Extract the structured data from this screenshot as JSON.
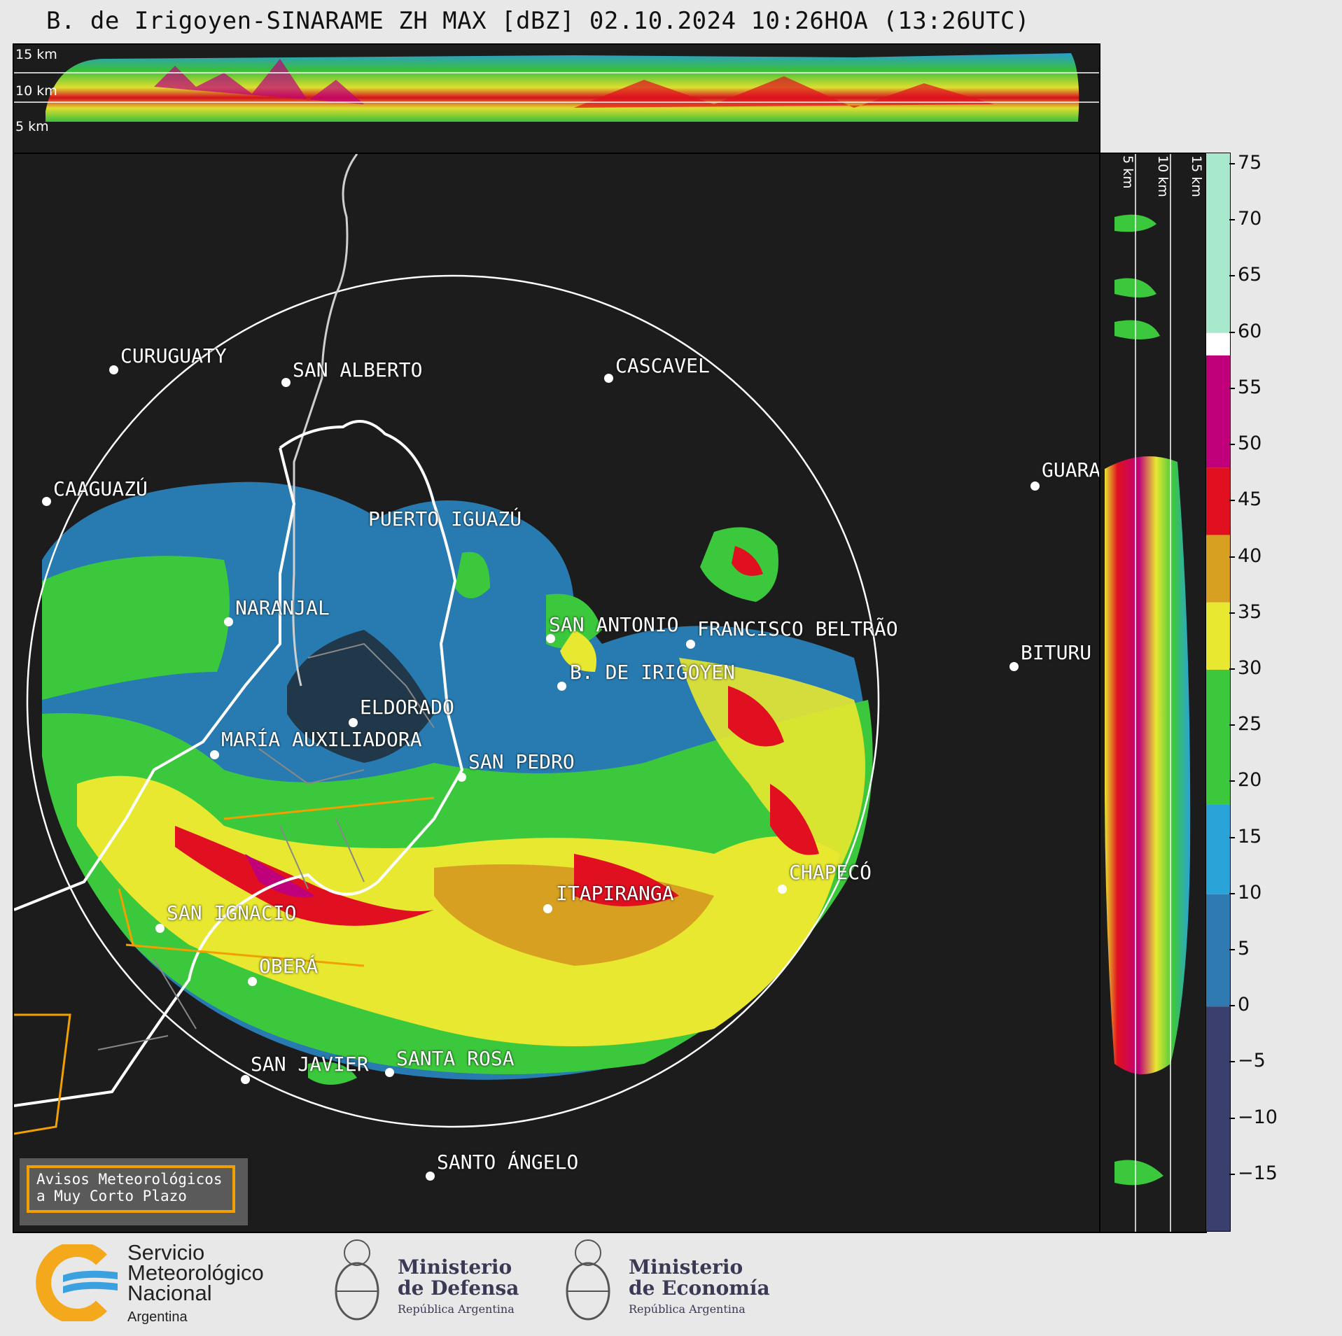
{
  "title": "B. de Irigoyen-SINARAME ZH MAX [dBZ] 02.10.2024 10:26HOA (13:26UTC)",
  "top_panel": {
    "height_labels": [
      "15 km",
      "10 km",
      "5 km"
    ]
  },
  "side_panel": {
    "height_labels": [
      "5 km",
      "10 km",
      "15 km"
    ]
  },
  "places": [
    {
      "name": "CURUGUATY"
    },
    {
      "name": "SAN ALBERTO"
    },
    {
      "name": "CASCAVEL"
    },
    {
      "name": "CAAGUAZÚ"
    },
    {
      "name": "GUARA"
    },
    {
      "name": "PUERTO IGUAZÚ"
    },
    {
      "name": "NARANJAL"
    },
    {
      "name": "SAN ANTONIO"
    },
    {
      "name": "FRANCISCO BELTRÃO"
    },
    {
      "name": "BITURU"
    },
    {
      "name": "B. DE IRIGOYEN"
    },
    {
      "name": "ELDORADO"
    },
    {
      "name": "MARÍA AUXILIADORA"
    },
    {
      "name": "SAN PEDRO"
    },
    {
      "name": "CHAPECÓ"
    },
    {
      "name": "ITAPIRANGA"
    },
    {
      "name": "SAN IGNACIO"
    },
    {
      "name": "OBERÁ"
    },
    {
      "name": "SAN JAVIER"
    },
    {
      "name": "SANTA ROSA"
    },
    {
      "name": "SANTO ÁNGELO"
    }
  ],
  "colorbar": {
    "unit": "dBZ",
    "min": -20,
    "max": 76,
    "ticks": [
      "75",
      "70",
      "65",
      "60",
      "55",
      "50",
      "45",
      "40",
      "35",
      "30",
      "25",
      "20",
      "15",
      "10",
      "5",
      "0",
      "−5",
      "−10",
      "−15"
    ],
    "bands": [
      {
        "from": -20,
        "to": 0,
        "color": "#3a3f6e"
      },
      {
        "from": 0,
        "to": 10,
        "color": "#2f7ab0"
      },
      {
        "from": 10,
        "to": 18,
        "color": "#2aa3d8"
      },
      {
        "from": 18,
        "to": 30,
        "color": "#3cc83c"
      },
      {
        "from": 30,
        "to": 36,
        "color": "#e8e830"
      },
      {
        "from": 36,
        "to": 42,
        "color": "#d8a020"
      },
      {
        "from": 42,
        "to": 48,
        "color": "#e01020"
      },
      {
        "from": 48,
        "to": 58,
        "color": "#c0007a"
      },
      {
        "from": 58,
        "to": 60,
        "color": "#ffffff"
      },
      {
        "from": 60,
        "to": 76,
        "color": "#a8e8cc"
      }
    ]
  },
  "notice": {
    "line1": "Avisos Meteorológicos",
    "line2": "a Muy Corto Plazo"
  },
  "logos": {
    "smn": {
      "line1": "Servicio",
      "line2": "Meteorológico",
      "line3": "Nacional",
      "line4": "Argentina"
    },
    "defensa": {
      "line1": "Ministerio",
      "line2": "de Defensa",
      "line3": "República Argentina"
    },
    "economia": {
      "line1": "Ministerio",
      "line2": "de Economía",
      "line3": "República Argentina"
    }
  },
  "colors": {
    "range_ring": "#ffffff",
    "border": "#ffffff",
    "province": "#f0a000",
    "river": "#cccccc"
  }
}
